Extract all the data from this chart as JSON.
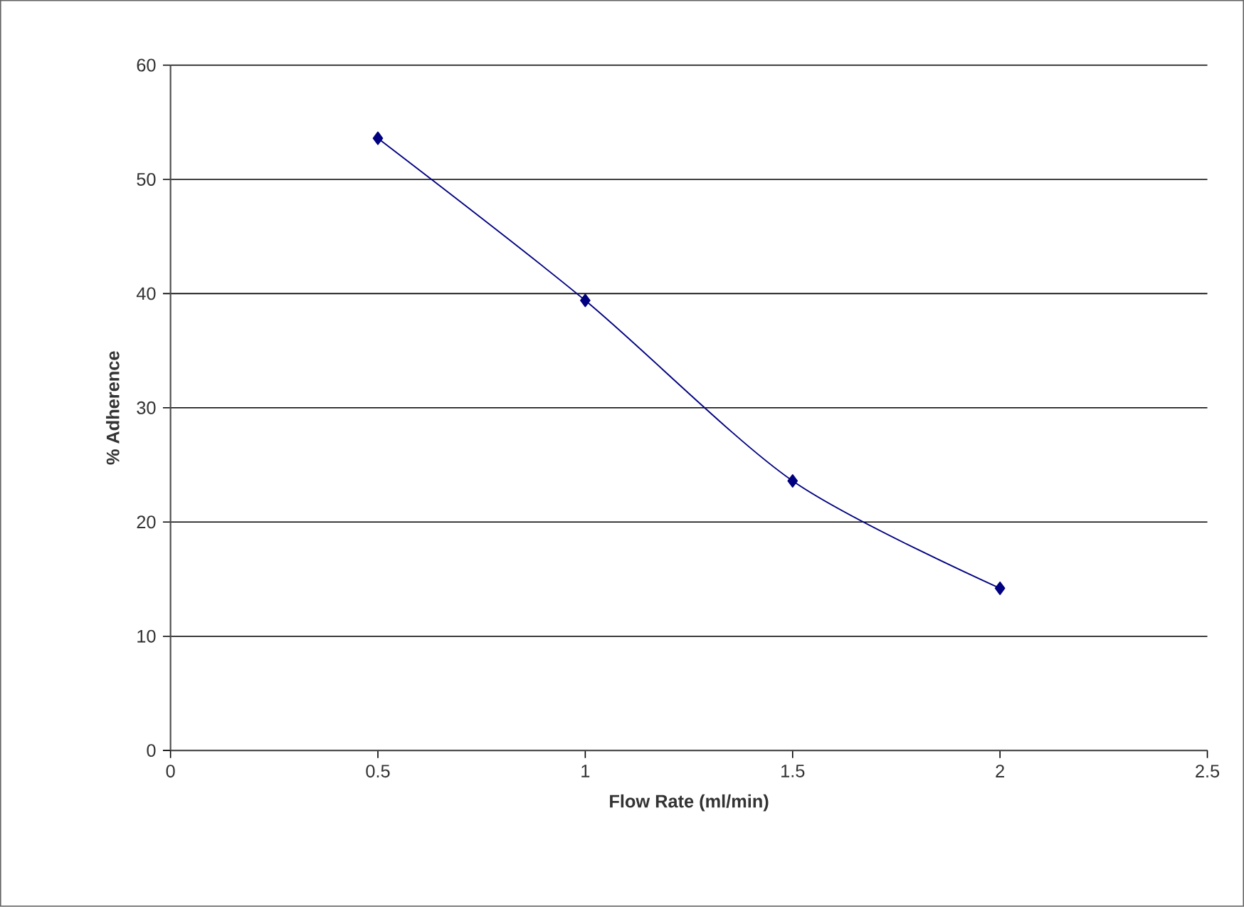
{
  "chart_data": {
    "type": "line",
    "xlabel": "Flow Rate (ml/min)",
    "ylabel": "% Adherence",
    "x": [
      0.5,
      1,
      1.5,
      2
    ],
    "series": [
      {
        "color": "#000080",
        "values": [
          53.6,
          39.4,
          23.6,
          14.2
        ]
      }
    ],
    "xlim": [
      0,
      2.5
    ],
    "xticks": [
      0,
      0.5,
      1,
      1.5,
      2,
      2.5
    ],
    "ylim": [
      0,
      60
    ],
    "yticks": [
      0,
      10,
      20,
      30,
      40,
      50,
      60
    ],
    "grid": "y",
    "marker": "diamond",
    "line_style": "solid"
  }
}
